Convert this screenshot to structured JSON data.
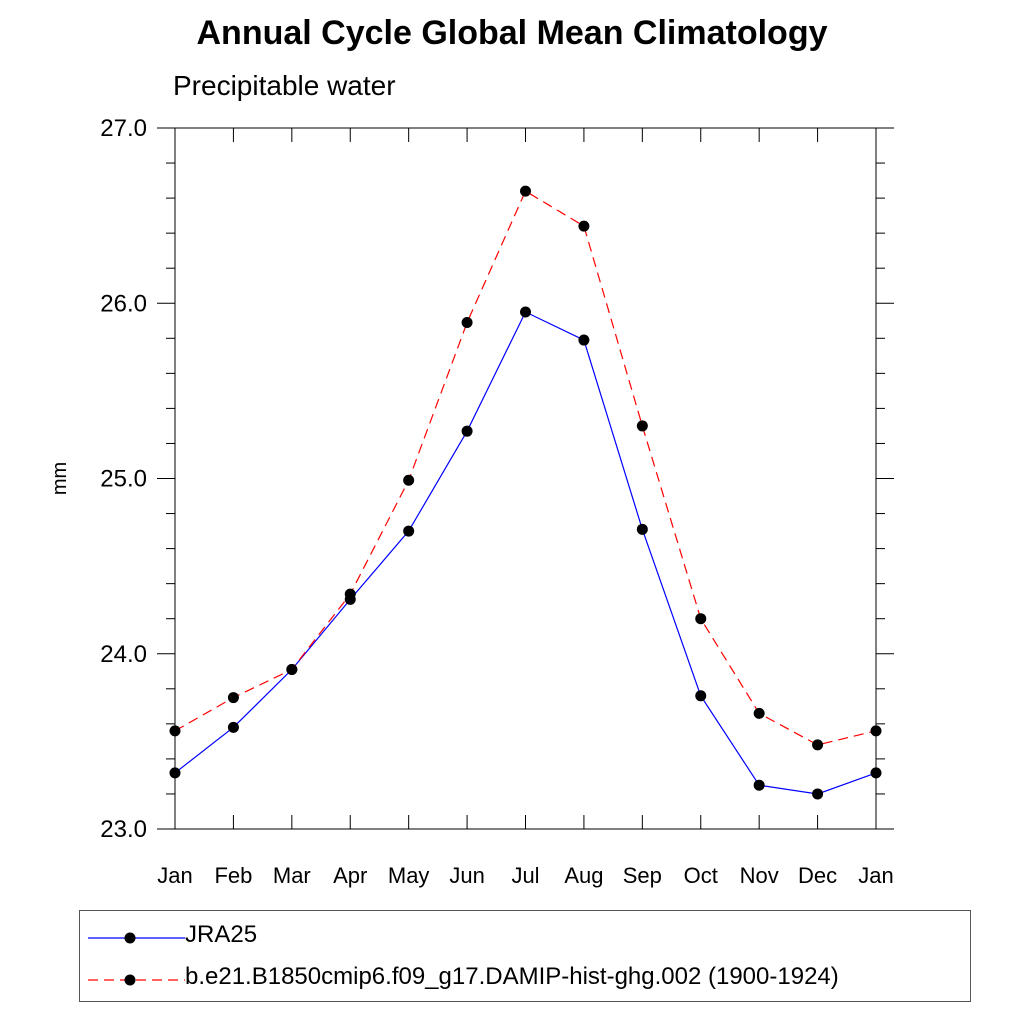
{
  "title": "Annual Cycle Global Mean Climatology",
  "subtitle": "Precipitable water",
  "chart_data": {
    "type": "line",
    "title": "Annual Cycle Global Mean Climatology",
    "subtitle": "Precipitable water",
    "xlabel": "",
    "ylabel": "mm",
    "categories": [
      "Jan",
      "Feb",
      "Mar",
      "Apr",
      "May",
      "Jun",
      "Jul",
      "Aug",
      "Sep",
      "Oct",
      "Nov",
      "Dec",
      "Jan"
    ],
    "ylim": [
      23.0,
      27.0
    ],
    "yticks": [
      "23.0",
      "24.0",
      "25.0",
      "26.0",
      "27.0"
    ],
    "grid": false,
    "legend_position": "bottom",
    "series": [
      {
        "name": "JRA25",
        "color": "#0000ff",
        "line_style": "solid",
        "marker": "filled-circle",
        "values": [
          23.32,
          23.58,
          23.91,
          24.31,
          24.7,
          25.27,
          25.95,
          25.79,
          24.71,
          23.76,
          23.25,
          23.2,
          23.32
        ]
      },
      {
        "name": "b.e21.B1850cmip6.f09_g17.DAMIP-hist-ghg.002 (1900-1924)",
        "color": "#ff0000",
        "line_style": "dashed",
        "marker": "filled-circle",
        "values": [
          23.56,
          23.75,
          23.91,
          24.34,
          24.99,
          25.89,
          26.64,
          26.44,
          25.3,
          24.2,
          23.66,
          23.48,
          23.56
        ]
      }
    ]
  }
}
